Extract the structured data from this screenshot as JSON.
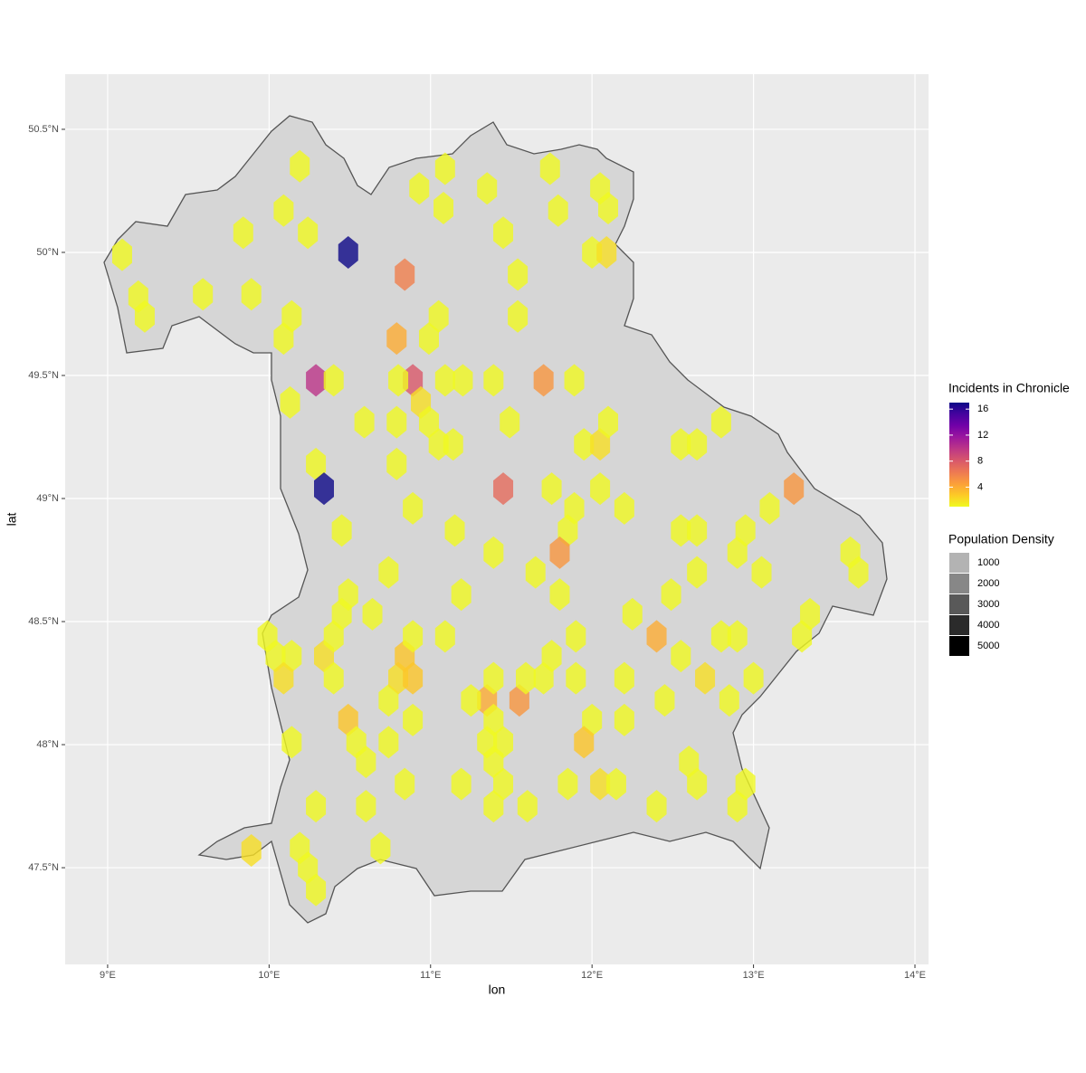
{
  "chart_data": {
    "type": "hexbin",
    "x_label": "lon",
    "y_label": "lat",
    "xlim": [
      8.737,
      14.084
    ],
    "ylim": [
      47.107,
      50.724
    ],
    "xticks": [
      {
        "value": 9,
        "label": "9°E"
      },
      {
        "value": 10,
        "label": "10°E"
      },
      {
        "value": 11,
        "label": "11°E"
      },
      {
        "value": 12,
        "label": "12°E"
      },
      {
        "value": 13,
        "label": "13°E"
      },
      {
        "value": 14,
        "label": "14°E"
      }
    ],
    "yticks": [
      {
        "value": 47.5,
        "label": "47.5°N"
      },
      {
        "value": 48,
        "label": "48°N"
      },
      {
        "value": 48.5,
        "label": "48.5°N"
      },
      {
        "value": 49,
        "label": "49°N"
      },
      {
        "value": 49.5,
        "label": "49.5°N"
      },
      {
        "value": 50,
        "label": "50°N"
      },
      {
        "value": 50.5,
        "label": "50.5°N"
      }
    ],
    "grid": true,
    "hexes": {
      "x": [
        9.09,
        9.19,
        9.23,
        9.59,
        9.89,
        9.84,
        10.09,
        10.19,
        10.24,
        10.49,
        10.14,
        10.09,
        10.84,
        10.93,
        11.09,
        11.08,
        11.05,
        10.99,
        11.35,
        11.45,
        11.54,
        11.54,
        11.74,
        11.79,
        12.05,
        12.1,
        12.0,
        12.09,
        10.29,
        10.4,
        10.13,
        10.79,
        10.89,
        10.8,
        10.94,
        10.59,
        10.79,
        10.99,
        11.05,
        11.14,
        11.09,
        11.2,
        11.39,
        11.49,
        11.7,
        11.89,
        11.95,
        12.05,
        12.1,
        10.29,
        10.34,
        10.79,
        10.89,
        10.45,
        11.15,
        11.45,
        11.75,
        11.89,
        12.05,
        12.2,
        11.85,
        11.8,
        11.39,
        11.65,
        11.19,
        10.74,
        11.8,
        12.25,
        12.4,
        12.49,
        12.55,
        12.65,
        12.55,
        12.65,
        12.8,
        13.1,
        13.25,
        12.9,
        12.95,
        13.05,
        12.65,
        13.6,
        13.65,
        13.35,
        13.3,
        12.8,
        12.9,
        13.0,
        12.85,
        12.7,
        12.55,
        12.45,
        12.2,
        12.2,
        11.9,
        11.75,
        11.9,
        11.55,
        11.35,
        11.25,
        11.39,
        11.7,
        11.59,
        11.39,
        11.45,
        12.0,
        11.95,
        11.35,
        11.39,
        11.45,
        11.39,
        11.6,
        11.85,
        12.05,
        12.15,
        12.4,
        12.6,
        12.65,
        12.9,
        12.95,
        11.19,
        10.84,
        10.69,
        10.6,
        10.49,
        10.54,
        10.6,
        10.74,
        10.89,
        10.74,
        10.8,
        10.89,
        10.84,
        10.89,
        11.09,
        10.34,
        10.4,
        10.4,
        10.45,
        10.49,
        10.64,
        9.99,
        10.04,
        10.14,
        10.09,
        10.14,
        10.29,
        10.19,
        10.24,
        10.29,
        9.89
      ],
      "y": [
        49.99,
        49.82,
        49.74,
        49.83,
        49.83,
        50.08,
        50.17,
        50.35,
        50.08,
        50.0,
        49.74,
        49.65,
        49.91,
        50.26,
        50.34,
        50.18,
        49.74,
        49.65,
        50.26,
        50.08,
        49.91,
        49.74,
        50.34,
        50.17,
        50.26,
        50.18,
        50.0,
        50.0,
        49.48,
        49.48,
        49.39,
        49.65,
        49.48,
        49.48,
        49.39,
        49.31,
        49.31,
        49.31,
        49.22,
        49.22,
        49.48,
        49.48,
        49.48,
        49.31,
        49.48,
        49.48,
        49.22,
        49.22,
        49.31,
        49.14,
        49.04,
        49.14,
        48.96,
        48.87,
        48.87,
        49.04,
        49.04,
        48.96,
        49.04,
        48.96,
        48.87,
        48.78,
        48.78,
        48.7,
        48.61,
        48.7,
        48.61,
        48.53,
        48.44,
        48.61,
        48.87,
        48.87,
        49.22,
        49.22,
        49.31,
        48.96,
        49.04,
        48.78,
        48.87,
        48.7,
        48.7,
        48.78,
        48.7,
        48.53,
        48.44,
        48.44,
        48.44,
        48.27,
        48.18,
        48.27,
        48.36,
        48.18,
        48.27,
        48.1,
        48.27,
        48.36,
        48.44,
        48.18,
        48.18,
        48.18,
        48.27,
        48.27,
        48.27,
        48.1,
        48.01,
        48.1,
        48.01,
        48.01,
        47.93,
        47.84,
        47.75,
        47.75,
        47.84,
        47.84,
        47.84,
        47.75,
        47.93,
        47.84,
        47.75,
        47.84,
        47.84,
        47.84,
        47.58,
        47.75,
        48.1,
        48.01,
        47.93,
        48.01,
        48.1,
        48.18,
        48.27,
        48.27,
        48.36,
        48.44,
        48.44,
        48.36,
        48.27,
        48.44,
        48.53,
        48.61,
        48.53,
        48.44,
        48.36,
        48.36,
        48.27,
        48.01,
        47.75,
        47.58,
        47.5,
        47.41,
        47.57
      ],
      "values": [
        1,
        1,
        1,
        1,
        1,
        1,
        1,
        1,
        1,
        17,
        1,
        1,
        6,
        1,
        1,
        1,
        1,
        1,
        1,
        1,
        1,
        1,
        1,
        1,
        1,
        1,
        1,
        2,
        10,
        1,
        1,
        4,
        8,
        1,
        2,
        1,
        1,
        1,
        1,
        1,
        1,
        1,
        1,
        1,
        5,
        1,
        1,
        2,
        1,
        1,
        17,
        1,
        1,
        1,
        1,
        7,
        1,
        1,
        1,
        1,
        1,
        5,
        1,
        1,
        1,
        1,
        1,
        1,
        4,
        1,
        1,
        1,
        1,
        1,
        1,
        1,
        5,
        1,
        1,
        1,
        1,
        1,
        1,
        1,
        1,
        1,
        1,
        1,
        1,
        2,
        1,
        1,
        1,
        1,
        1,
        1,
        1,
        5,
        4,
        1,
        1,
        1,
        1,
        1,
        1,
        1,
        3,
        1,
        1,
        1,
        1,
        1,
        1,
        2,
        1,
        1,
        1,
        1,
        1,
        1,
        1,
        1,
        1,
        1,
        3,
        1,
        1,
        1,
        1,
        1,
        2,
        3,
        3,
        1,
        1,
        2,
        1,
        1,
        1,
        1,
        1,
        1,
        1,
        1,
        2,
        1,
        1,
        1,
        1,
        1,
        2
      ]
    },
    "fill_legend": {
      "title": "Incidents in Chronicle",
      "range": [
        1,
        17
      ],
      "ticks": [
        4,
        8,
        12,
        16
      ],
      "colormap": "plasma",
      "reverse": true
    },
    "population_legend": {
      "title": "Population Density",
      "values": [
        1000,
        2000,
        3000,
        4000,
        5000
      ],
      "colors": [
        "#b3b3b3",
        "#878787",
        "#595959",
        "#2b2b2b",
        "#000000"
      ]
    }
  }
}
